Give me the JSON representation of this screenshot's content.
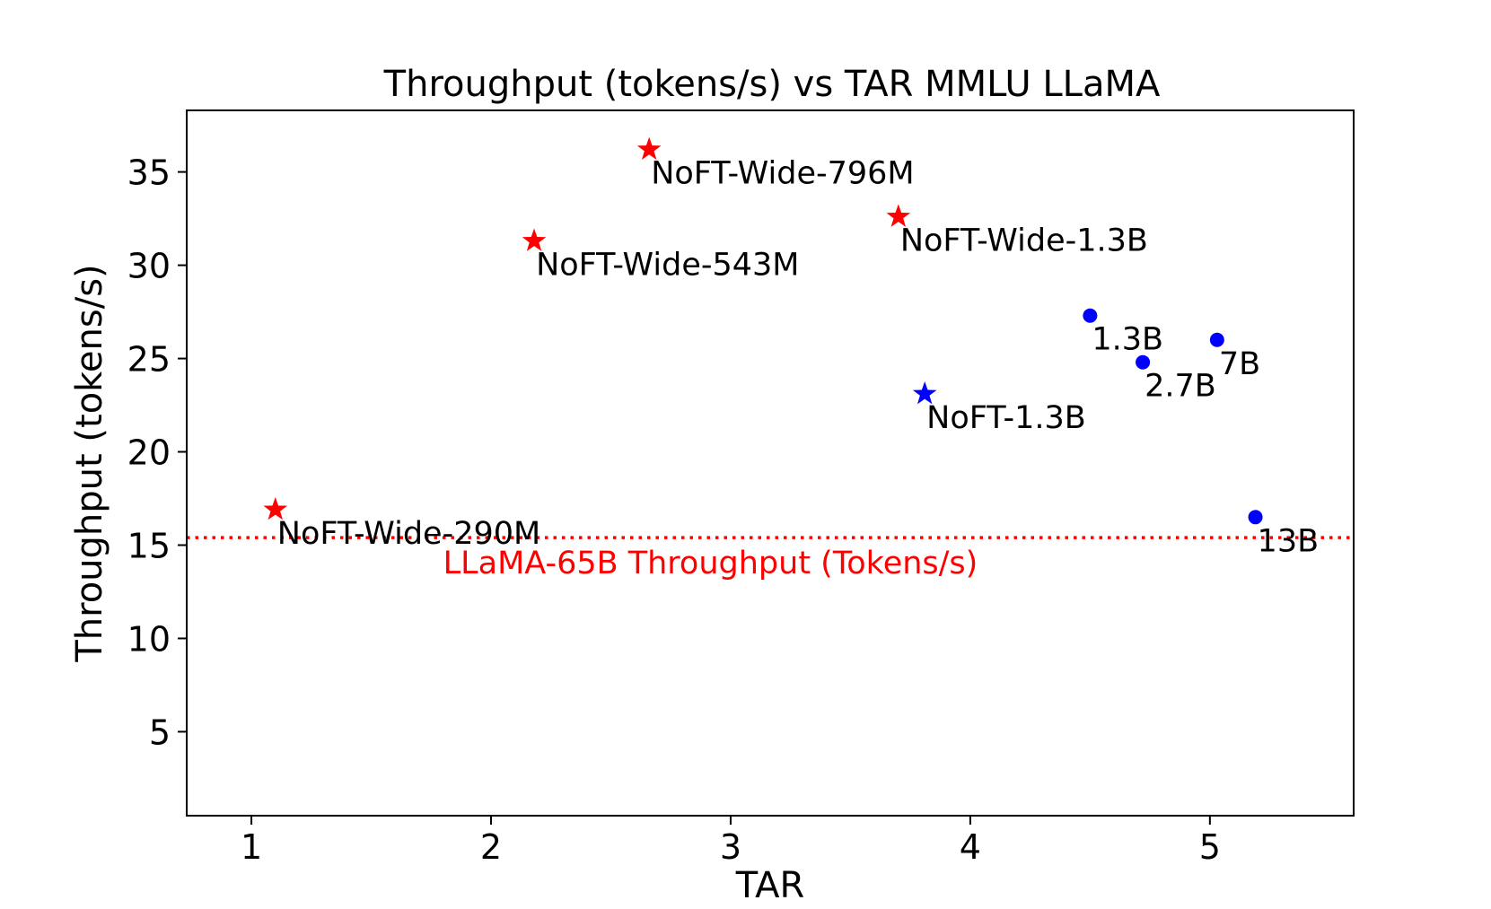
{
  "chart_data": {
    "type": "scatter",
    "title": "Throughput (tokens/s) vs TAR MMLU LLaMA",
    "xlabel": "TAR",
    "ylabel": "Throughput (tokens/s)",
    "xlim": [
      0.73,
      5.6
    ],
    "ylim": [
      0.5,
      38.3
    ],
    "x_ticks": [
      1,
      2,
      3,
      4,
      5
    ],
    "y_ticks": [
      5,
      10,
      15,
      20,
      25,
      30,
      35
    ],
    "grid": false,
    "points": [
      {
        "x": 1.1,
        "y": 16.9,
        "label": "NoFT-Wide-290M",
        "marker": "star",
        "color": "#ff0000"
      },
      {
        "x": 2.18,
        "y": 31.3,
        "label": "NoFT-Wide-543M",
        "marker": "star",
        "color": "#ff0000"
      },
      {
        "x": 2.66,
        "y": 36.2,
        "label": "NoFT-Wide-796M",
        "marker": "star",
        "color": "#ff0000"
      },
      {
        "x": 3.7,
        "y": 32.6,
        "label": "NoFT-Wide-1.3B",
        "marker": "star",
        "color": "#ff0000"
      },
      {
        "x": 3.81,
        "y": 23.1,
        "label": "NoFT-1.3B",
        "marker": "star",
        "color": "#0000ff"
      },
      {
        "x": 4.5,
        "y": 27.3,
        "label": "1.3B",
        "marker": "circle",
        "color": "#0000ff"
      },
      {
        "x": 4.72,
        "y": 24.8,
        "label": "2.7B",
        "marker": "circle",
        "color": "#0000ff"
      },
      {
        "x": 5.03,
        "y": 26.0,
        "label": "7B",
        "marker": "circle",
        "color": "#0000ff"
      },
      {
        "x": 5.19,
        "y": 16.5,
        "label": "13B",
        "marker": "circle",
        "color": "#0000ff"
      }
    ],
    "reference_line": {
      "y": 15.4,
      "label": "LLaMA-65B Throughput (Tokens/s)",
      "color": "#ff0000",
      "style": "dotted"
    }
  }
}
